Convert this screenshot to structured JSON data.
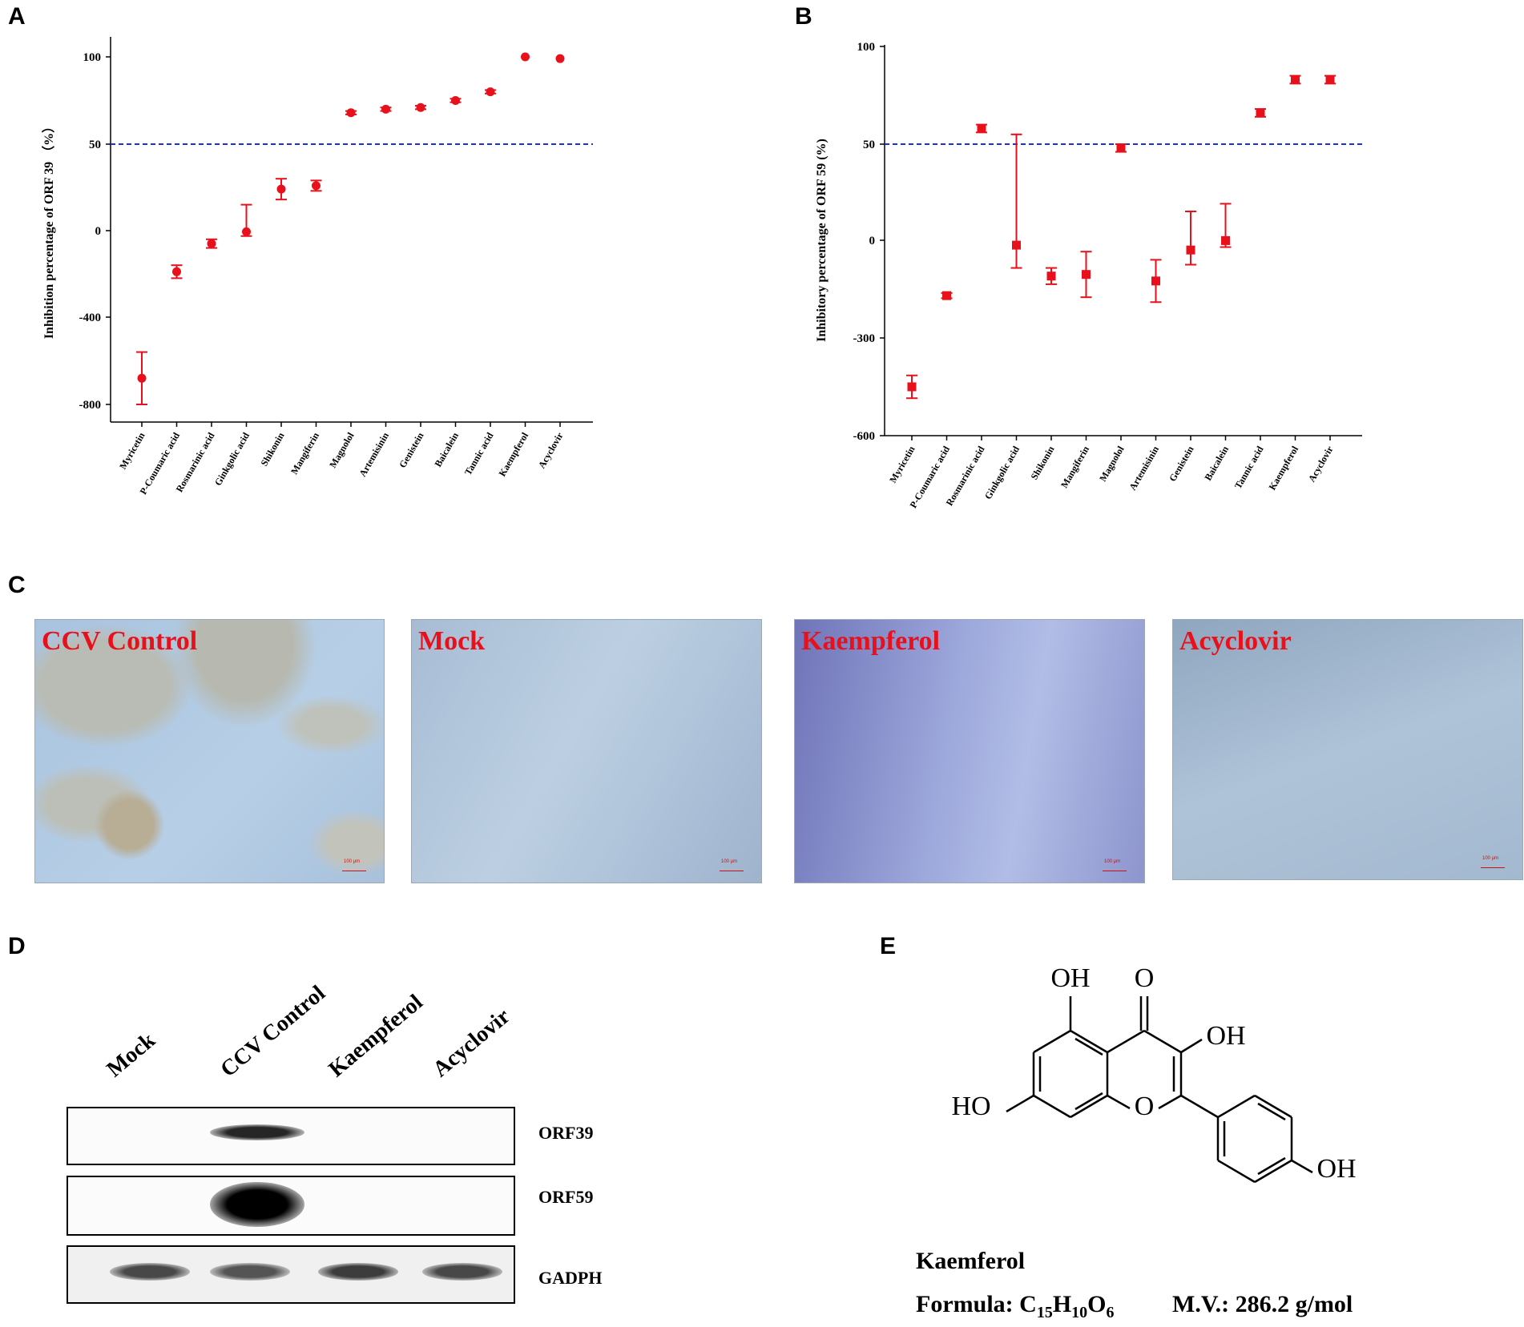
{
  "panel_letters": {
    "a": "A",
    "b": "B",
    "c": "C",
    "d": "D",
    "e": "E"
  },
  "chart_data": [
    {
      "type": "scatter",
      "ylabel": "Inhibition percentage of ORF 39 （%）",
      "yticks": [
        100,
        50,
        0,
        -400,
        -800
      ],
      "reference_line": 50,
      "categories": [
        "Myricetin",
        "P-Coumaric acid",
        "Rosmarinic acid",
        "Ginkgolic acid",
        "Shikonin",
        "Mangiferin",
        "Magnolol",
        "Artemisinin",
        "Genistein",
        "Baicalein",
        "Tannic acid",
        "Kaempferol",
        "Acyclovir"
      ],
      "values": [
        -680,
        -190,
        -60,
        -5,
        24,
        26,
        68,
        70,
        71,
        75,
        80,
        100,
        99
      ],
      "errors": [
        120,
        30,
        20,
        20,
        6,
        3,
        1,
        1,
        1,
        1,
        1,
        0.5,
        0.5
      ],
      "marker": "circle",
      "color": "#e8101a",
      "line_color": "#1a2fd6"
    },
    {
      "type": "scatter",
      "ylabel": "Inhibitory percentage of ORF 59 (%)",
      "yticks": [
        100,
        50,
        0,
        -300,
        -600
      ],
      "reference_line": 50,
      "categories": [
        "Myricetin",
        "P-Coumaric acid",
        "Rosmarinic acid",
        "Ginkgolic acid",
        "Shikonin",
        "Mangiferin",
        "Magnolol",
        "Artemisinin",
        "Genistein",
        "Baicalein",
        "Tannic acid",
        "Kaempferol",
        "Acyclovir"
      ],
      "values": [
        -450,
        -170,
        58,
        -15,
        -110,
        -105,
        48,
        -125,
        -30,
        -1,
        66,
        83,
        83
      ],
      "errors": [
        35,
        8,
        2,
        70,
        25,
        70,
        2,
        65,
        45,
        20,
        2,
        2,
        2
      ],
      "marker": "square",
      "color": "#e8101a",
      "line_color": "#1a2fd6"
    }
  ],
  "micrographs": [
    {
      "label": "CCV Control",
      "scale": "100 μm"
    },
    {
      "label": "Mock",
      "scale": "100 μm"
    },
    {
      "label": "Kaempferol",
      "scale": "100 μm"
    },
    {
      "label": "Acyclovir",
      "scale": "100 μm"
    }
  ],
  "blot": {
    "lanes": [
      "Mock",
      "CCV Control",
      "Kaempferol",
      "Acyclovir"
    ],
    "rows": [
      {
        "name": "ORF39",
        "intensity": [
          0,
          0.85,
          0,
          0
        ]
      },
      {
        "name": "ORF59",
        "intensity": [
          0,
          1.0,
          0,
          0
        ]
      },
      {
        "name": "GADPH",
        "intensity": [
          0.7,
          0.65,
          0.75,
          0.7
        ]
      }
    ]
  },
  "molecule": {
    "groups": {
      "oh5": "OH",
      "o4": "O",
      "oh3": "OH",
      "oh7": "HO",
      "ring_o": "O",
      "oh4p": "OH"
    },
    "name": "Kaemferol",
    "formula_prefix": "Formula: C",
    "formula_c": "15",
    "formula_h_letter": "H",
    "formula_h": "10",
    "formula_o_letter": "O",
    "formula_o": "6",
    "mass": "M.V.: 286.2 g/mol"
  }
}
